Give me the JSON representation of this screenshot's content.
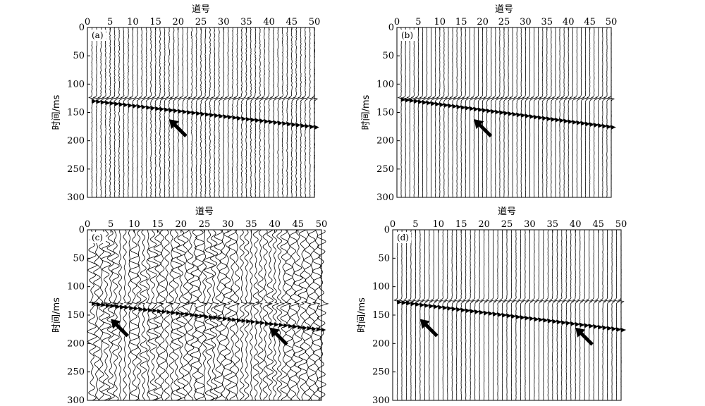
{
  "figure": {
    "panels": [
      {
        "id": "a",
        "label": "(a)"
      },
      {
        "id": "b",
        "label": "(b)"
      },
      {
        "id": "c",
        "label": "(c)"
      },
      {
        "id": "d",
        "label": "(d)"
      }
    ]
  },
  "chart_data": [
    {
      "type": "line",
      "panel_label": "(a)",
      "xlabel": "道号",
      "ylabel": "时间/ms",
      "xlim": [
        0,
        50
      ],
      "ylim": [
        0,
        300
      ],
      "y_inverted": true,
      "x_axis_position": "top",
      "xticks": [
        0,
        5,
        10,
        15,
        20,
        25,
        30,
        35,
        40,
        45,
        50
      ],
      "yticks": [
        0,
        50,
        100,
        150,
        200,
        250,
        300
      ],
      "traces": 50,
      "direct_wave_time": 125,
      "first_break": {
        "trace": [
          1,
          50
        ],
        "time": [
          130,
          176
        ]
      },
      "noise": "low",
      "arrows": [
        {
          "trace": 18,
          "time": 165
        }
      ]
    },
    {
      "type": "line",
      "panel_label": "(b)",
      "xlabel": "道号",
      "ylabel": "时间/ms",
      "xlim": [
        0,
        50
      ],
      "ylim": [
        0,
        300
      ],
      "y_inverted": true,
      "x_axis_position": "top",
      "xticks": [
        0,
        5,
        10,
        15,
        20,
        25,
        30,
        35,
        40,
        45,
        50
      ],
      "yticks": [
        0,
        50,
        100,
        150,
        200,
        250,
        300
      ],
      "traces": 50,
      "direct_wave_time": 125,
      "first_break": {
        "trace": [
          1,
          50
        ],
        "time": [
          127,
          176
        ]
      },
      "noise": "very low",
      "arrows": [
        {
          "trace": 18,
          "time": 165
        }
      ]
    },
    {
      "type": "line",
      "panel_label": "(c)",
      "xlabel": "道号",
      "ylabel": "时间/ms",
      "xlim": [
        0,
        50
      ],
      "ylim": [
        0,
        300
      ],
      "y_inverted": true,
      "x_axis_position": "top",
      "xticks": [
        0,
        5,
        10,
        15,
        20,
        25,
        30,
        35,
        40,
        45,
        50
      ],
      "yticks": [
        0,
        50,
        100,
        150,
        200,
        250,
        300
      ],
      "traces": 50,
      "direct_wave_time": 130,
      "first_break": {
        "trace": [
          1,
          50
        ],
        "time": [
          130,
          176
        ]
      },
      "noise": "high",
      "arrows": [
        {
          "trace": 5,
          "time": 160
        },
        {
          "trace": 39,
          "time": 175
        }
      ]
    },
    {
      "type": "line",
      "panel_label": "(d)",
      "xlabel": "道号",
      "ylabel": "时间/ms",
      "xlim": [
        0,
        50
      ],
      "ylim": [
        0,
        300
      ],
      "y_inverted": true,
      "x_axis_position": "top",
      "xticks": [
        0,
        5,
        10,
        15,
        20,
        25,
        30,
        35,
        40,
        45,
        50
      ],
      "yticks": [
        0,
        50,
        100,
        150,
        200,
        250,
        300
      ],
      "traces": 50,
      "direct_wave_time": 125,
      "first_break": {
        "trace": [
          1,
          50
        ],
        "time": [
          127,
          176
        ]
      },
      "noise": "very low",
      "arrows": [
        {
          "trace": 6,
          "time": 160
        },
        {
          "trace": 40,
          "time": 175
        }
      ]
    }
  ]
}
